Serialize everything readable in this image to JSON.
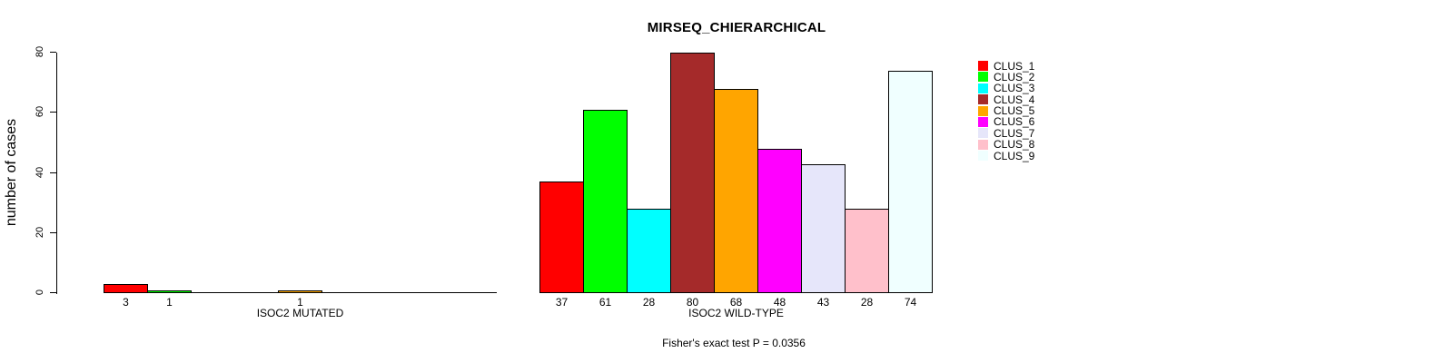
{
  "chart_data": {
    "type": "bar",
    "title": "MIRSEQ_CHIERARCHICAL",
    "ylabel": "number of cases",
    "ylim": [
      0,
      80
    ],
    "yticks": [
      0,
      20,
      40,
      60,
      80
    ],
    "grid": false,
    "legend_position": "right",
    "categories": [
      "CLUS_1",
      "CLUS_2",
      "CLUS_3",
      "CLUS_4",
      "CLUS_5",
      "CLUS_6",
      "CLUS_7",
      "CLUS_8",
      "CLUS_9"
    ],
    "colors": [
      "#FF0000",
      "#00FF00",
      "#00FFFF",
      "#A52A2A",
      "#FFA500",
      "#FF00FF",
      "#E6E6FA",
      "#FFC0CB",
      "#F0FFFF"
    ],
    "bar_border_color": "#000000",
    "groups": [
      {
        "label": "ISOC2 MUTATED",
        "values": [
          3,
          1,
          0,
          0,
          1,
          0,
          0,
          0,
          0
        ]
      },
      {
        "label": "ISOC2 WILD-TYPE",
        "values": [
          37,
          61,
          28,
          80,
          68,
          48,
          43,
          28,
          74
        ]
      }
    ],
    "bar_value_labels_shown": true,
    "annotation": "Fisher's exact test P = 0.0356"
  }
}
